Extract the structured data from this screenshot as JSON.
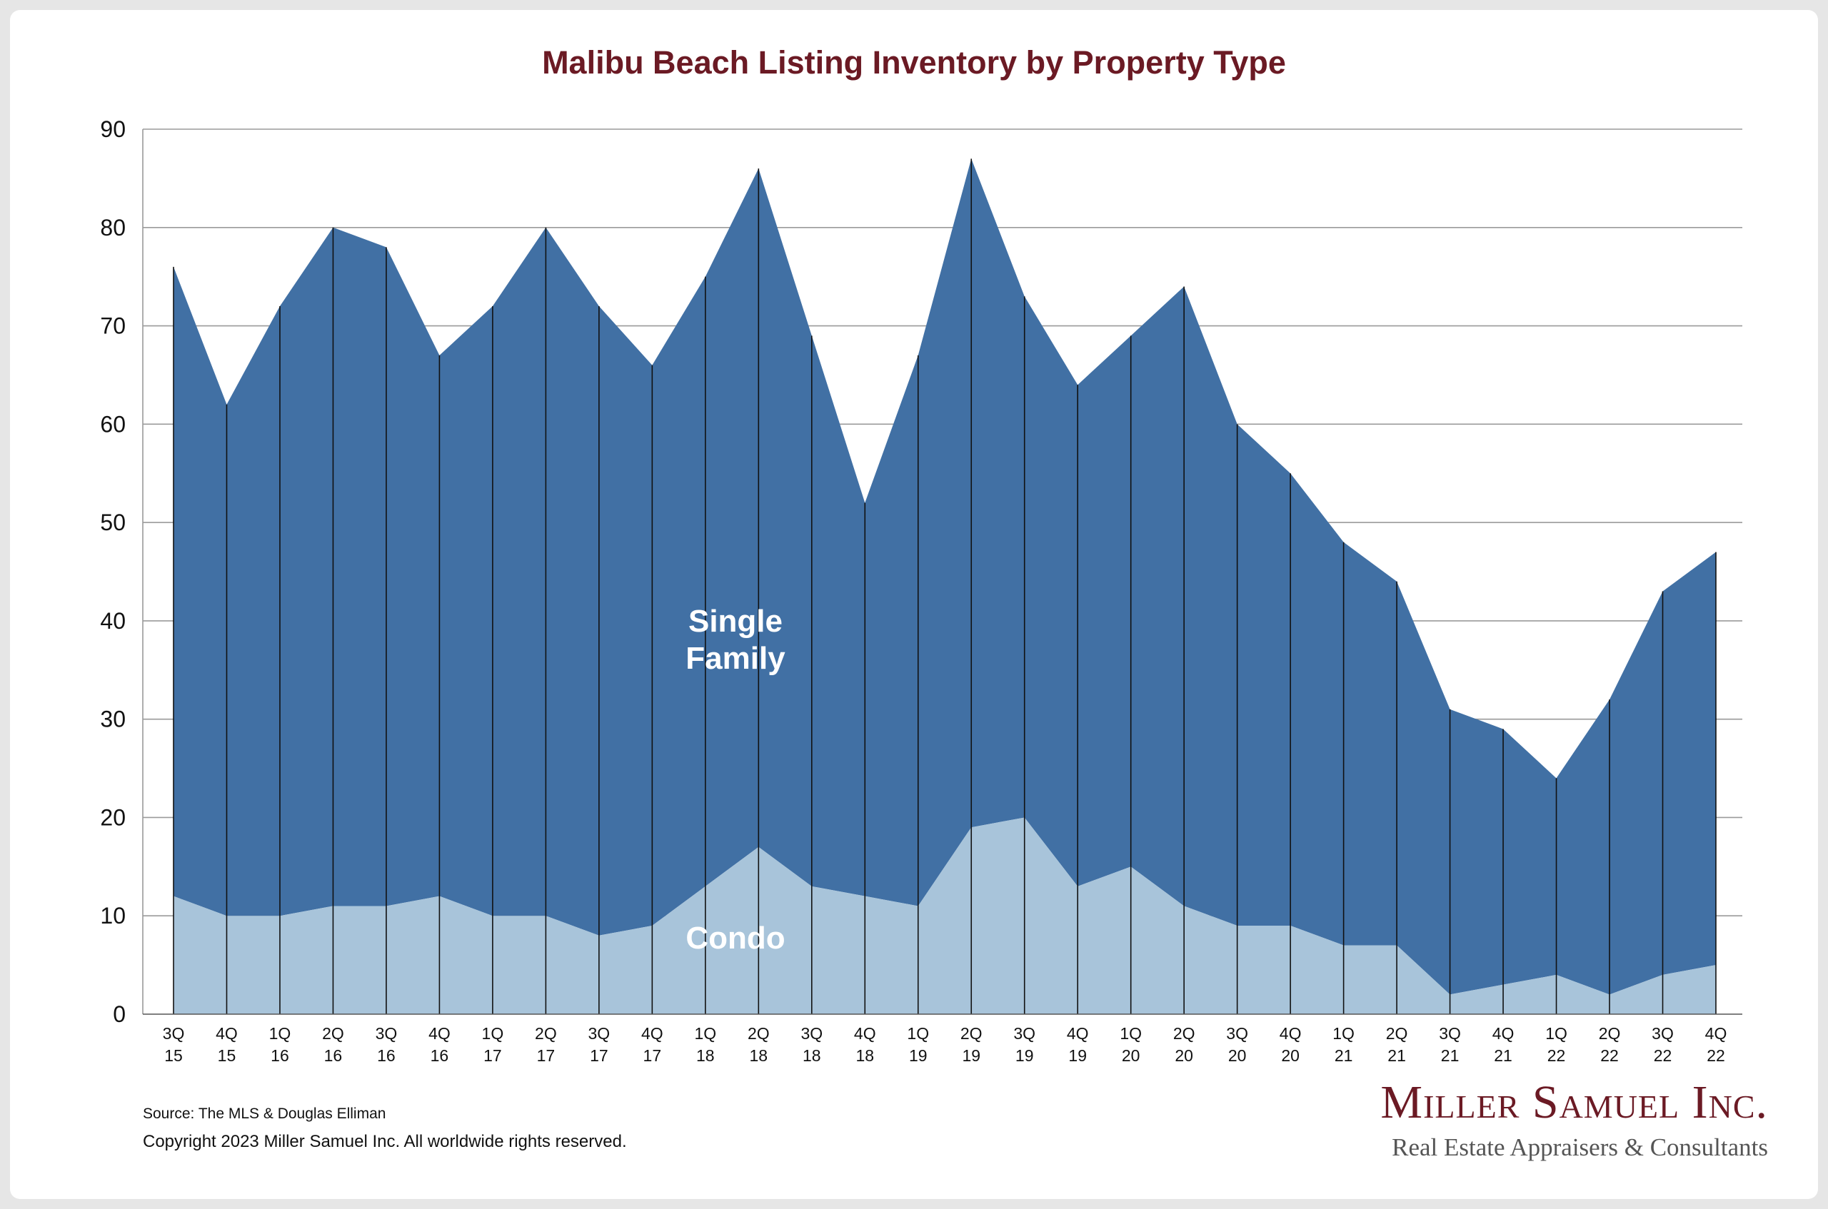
{
  "chart_data": {
    "type": "area",
    "stacked": true,
    "title": "Malibu Beach Listing Inventory by Property Type",
    "xlabel": "",
    "ylabel": "",
    "ylim": [
      0,
      90
    ],
    "yticks": [
      0,
      10,
      20,
      30,
      40,
      50,
      60,
      70,
      80,
      90
    ],
    "grid": true,
    "categories": [
      [
        "3Q",
        "15"
      ],
      [
        "4Q",
        "15"
      ],
      [
        "1Q",
        "16"
      ],
      [
        "2Q",
        "16"
      ],
      [
        "3Q",
        "16"
      ],
      [
        "4Q",
        "16"
      ],
      [
        "1Q",
        "17"
      ],
      [
        "2Q",
        "17"
      ],
      [
        "3Q",
        "17"
      ],
      [
        "4Q",
        "17"
      ],
      [
        "1Q",
        "18"
      ],
      [
        "2Q",
        "18"
      ],
      [
        "3Q",
        "18"
      ],
      [
        "4Q",
        "18"
      ],
      [
        "1Q",
        "19"
      ],
      [
        "2Q",
        "19"
      ],
      [
        "3Q",
        "19"
      ],
      [
        "4Q",
        "19"
      ],
      [
        "1Q",
        "20"
      ],
      [
        "2Q",
        "20"
      ],
      [
        "3Q",
        "20"
      ],
      [
        "4Q",
        "20"
      ],
      [
        "1Q",
        "21"
      ],
      [
        "2Q",
        "21"
      ],
      [
        "3Q",
        "21"
      ],
      [
        "4Q",
        "21"
      ],
      [
        "1Q",
        "22"
      ],
      [
        "2Q",
        "22"
      ],
      [
        "3Q",
        "22"
      ],
      [
        "4Q",
        "22"
      ]
    ],
    "series": [
      {
        "name": "Condo",
        "color": "#a8c4da",
        "values": [
          12,
          10,
          10,
          11,
          11,
          12,
          10,
          10,
          8,
          9,
          13,
          17,
          13,
          12,
          11,
          19,
          20,
          13,
          15,
          11,
          9,
          9,
          7,
          7,
          2,
          3,
          4,
          2,
          4,
          5
        ]
      },
      {
        "name": "Single Family",
        "color": "#4170a4",
        "values": [
          64,
          52,
          62,
          69,
          67,
          55,
          62,
          70,
          64,
          57,
          62,
          69,
          56,
          40,
          56,
          68,
          53,
          51,
          54,
          63,
          51,
          46,
          41,
          37,
          29,
          26,
          20,
          30,
          39,
          42
        ]
      }
    ],
    "totals": [
      76,
      62,
      72,
      80,
      78,
      67,
      72,
      80,
      72,
      66,
      75,
      86,
      69,
      52,
      67,
      87,
      73,
      64,
      69,
      74,
      60,
      55,
      48,
      44,
      31,
      29,
      24,
      32,
      43,
      47
    ],
    "series_labels": {
      "single_family": [
        "Single",
        "Family"
      ],
      "condo": "Condo"
    }
  },
  "footer": {
    "source": "Source: The MLS & Douglas Elliman",
    "copyright": "Copyright 2023 Miller Samuel Inc.  All worldwide rights reserved."
  },
  "logo": {
    "name": "Miller Samuel Inc.",
    "tagline": "Real Estate Appraisers & Consultants"
  },
  "colors": {
    "title": "#6b1a24",
    "logo": "#6b1a24",
    "single_family": "#4170a4",
    "condo": "#a8c4da",
    "grid": "#9a9a9a"
  }
}
